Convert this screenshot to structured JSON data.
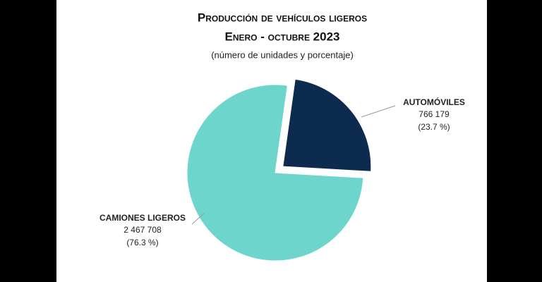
{
  "chart_data": {
    "type": "pie",
    "title": "Producción de vehículos ligeros",
    "subtitle": "Enero - octubre 2023",
    "note": "(número de unidades y porcentaje)",
    "categories": [
      "AUTOMÓVILES",
      "CAMIONES LIGEROS"
    ],
    "values": [
      766179,
      2467708
    ],
    "value_labels": [
      "766 179",
      "2 467 708"
    ],
    "percents": [
      23.7,
      76.3
    ],
    "percent_labels": [
      "(23.7 %)",
      "(76.3 %)"
    ],
    "colors": [
      "#0d2b4e",
      "#6dd5cc"
    ],
    "explode": [
      true,
      false
    ]
  }
}
